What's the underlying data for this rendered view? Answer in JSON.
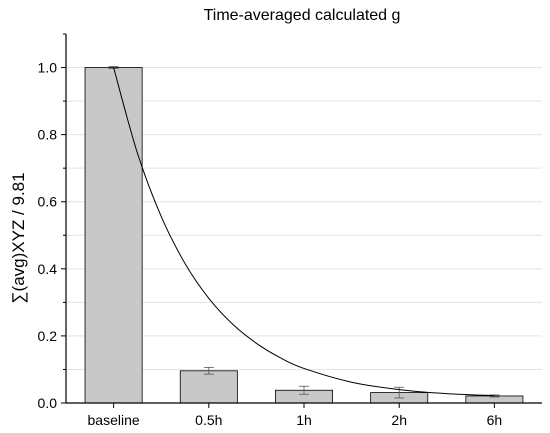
{
  "chart_data": {
    "type": "bar",
    "title": "Time-averaged calculated g",
    "xlabel": "",
    "ylabel": "∑(avg)XYZ / 9.81",
    "categories": [
      "baseline",
      "0.5h",
      "1h",
      "2h",
      "6h"
    ],
    "series": [
      {
        "values": [
          1.0,
          0.096,
          0.038,
          0.031,
          0.021
        ],
        "errors": [
          0.003,
          0.01,
          0.012,
          0.016,
          0.003
        ],
        "color": "#c8c8c8"
      }
    ],
    "trendline": {
      "type": "exponential-fit",
      "x": [
        0,
        0.25,
        0.5,
        0.75,
        1.0,
        1.25,
        1.5,
        1.75,
        2.0,
        2.5,
        3.0,
        3.5,
        4.0
      ],
      "y": [
        1.0,
        0.745,
        0.556,
        0.416,
        0.312,
        0.235,
        0.178,
        0.135,
        0.103,
        0.062,
        0.04,
        0.028,
        0.022
      ],
      "color": "#000000"
    },
    "yticks": [
      0.0,
      0.2,
      0.4,
      0.6,
      0.8,
      1.0
    ],
    "ytick_labels": [
      "0.0",
      "0.2",
      "0.4",
      "0.6",
      "0.8",
      "1.0"
    ],
    "ylim": [
      0,
      1.1
    ],
    "grid": "horizontal",
    "legend": "none"
  }
}
